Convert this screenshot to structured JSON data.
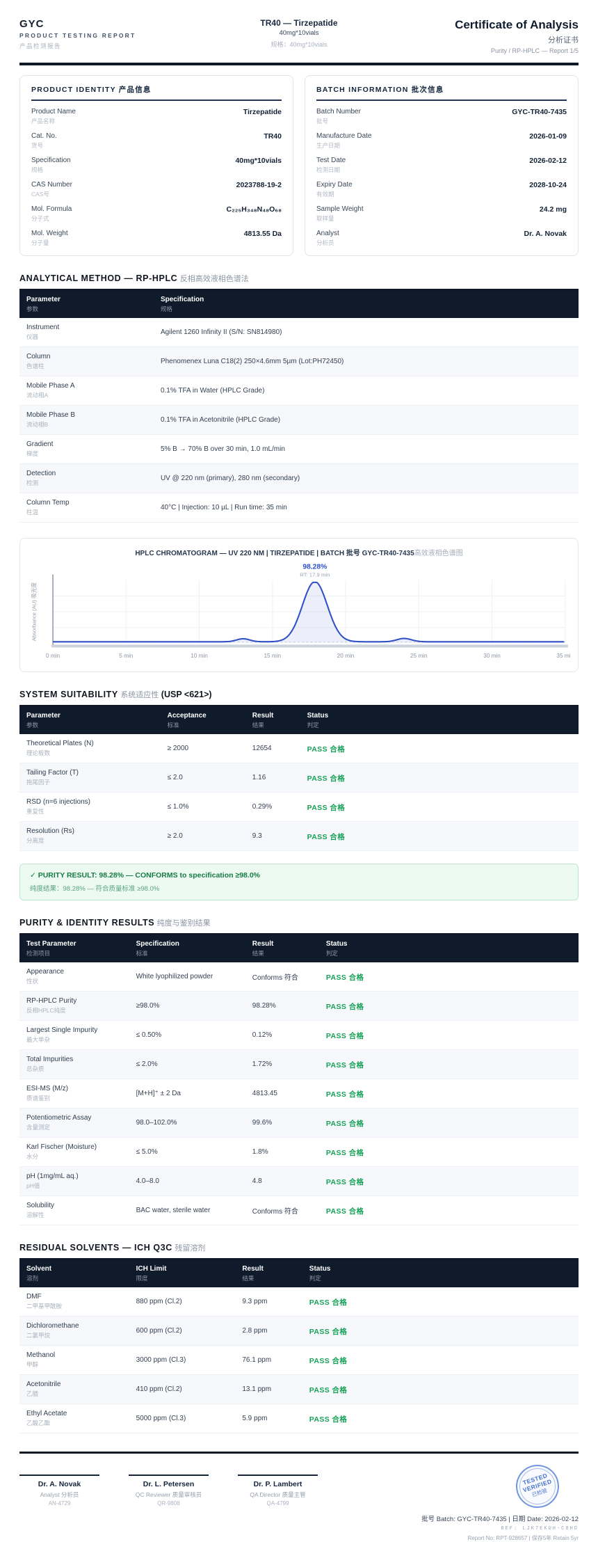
{
  "header": {
    "brand": "GYC",
    "brand_sub": "PRODUCT TESTING REPORT",
    "brand_zh": "产品检测报告",
    "product_title": "TR40 — Tirzepatide",
    "product_sub": "40mg*10vials",
    "product_spec_zh": "规格：40mg*10vials",
    "doc_title": "Certificate of Analysis",
    "doc_title_zh": "分析证书",
    "doc_sub": "Purity / RP-HPLC — Report 1/5"
  },
  "product_identity": {
    "title": "PRODUCT IDENTITY 产品信息",
    "rows": [
      {
        "label_en": "Product Name",
        "label_zh": "产品名称",
        "value": "Tirzepatide"
      },
      {
        "label_en": "Cat. No.",
        "label_zh": "货号",
        "value": "TR40"
      },
      {
        "label_en": "Specification",
        "label_zh": "规格",
        "value": "40mg*10vials"
      },
      {
        "label_en": "CAS Number",
        "label_zh": "CAS号",
        "value": "2023788-19-2"
      },
      {
        "label_en": "Mol. Formula",
        "label_zh": "分子式",
        "value": "C₂₂₅H₃₄₈N₄₈O₆₈"
      },
      {
        "label_en": "Mol. Weight",
        "label_zh": "分子量",
        "value": "4813.55 Da"
      }
    ]
  },
  "batch_information": {
    "title": "BATCH INFORMATION 批次信息",
    "rows": [
      {
        "label_en": "Batch Number",
        "label_zh": "批号",
        "value": "GYC-TR40-7435"
      },
      {
        "label_en": "Manufacture Date",
        "label_zh": "生产日期",
        "value": "2026-01-09"
      },
      {
        "label_en": "Test Date",
        "label_zh": "检测日期",
        "value": "2026-02-12"
      },
      {
        "label_en": "Expiry Date",
        "label_zh": "有效期",
        "value": "2028-10-24"
      },
      {
        "label_en": "Sample Weight",
        "label_zh": "取样量",
        "value": "24.2 mg"
      },
      {
        "label_en": "Analyst",
        "label_zh": "分析员",
        "value": "Dr. A. Novak"
      }
    ]
  },
  "method": {
    "heading_en": "ANALYTICAL METHOD — RP-HPLC",
    "heading_zh": "反相高效液相色谱法",
    "col1_en": "Parameter",
    "col1_zh": "参数",
    "col2_en": "Specification",
    "col2_zh": "规格",
    "rows": [
      {
        "param_en": "Instrument",
        "param_zh": "仪器",
        "spec": "Agilent 1260 Infinity II (S/N: SN814980)"
      },
      {
        "param_en": "Column",
        "param_zh": "色谱柱",
        "spec": "Phenomenex Luna C18(2) 250×4.6mm 5µm (Lot:PH72450)"
      },
      {
        "param_en": "Mobile Phase A",
        "param_zh": "流动相A",
        "spec": "0.1% TFA in Water (HPLC Grade)"
      },
      {
        "param_en": "Mobile Phase B",
        "param_zh": "流动相B",
        "spec": "0.1% TFA in Acetonitrile (HPLC Grade)"
      },
      {
        "param_en": "Gradient",
        "param_zh": "梯度",
        "spec": "5% B → 70% B over 30 min, 1.0 mL/min"
      },
      {
        "param_en": "Detection",
        "param_zh": "检测",
        "spec": "UV @ 220 nm (primary), 280 nm (secondary)"
      },
      {
        "param_en": "Column Temp",
        "param_zh": "柱温",
        "spec": "40°C | Injection: 10 µL | Run time: 35 min"
      }
    ]
  },
  "chart_data": {
    "type": "line",
    "title": "HPLC CHROMATOGRAM — UV 220 NM | TIRZEPATIDE | BATCH 批号 GYC-TR40-7435",
    "title_zh_suffix": "高效液相色谱图",
    "ylabel": "Absorbance (AU) 吸光度",
    "xlabel": "",
    "x_range_min": [
      0,
      35
    ],
    "x_ticks": [
      "0 min",
      "5 min",
      "10 min",
      "15 min",
      "20 min",
      "25 min",
      "30 min",
      "35 min"
    ],
    "x_tick_values": [
      0,
      5,
      10,
      15,
      20,
      25,
      30,
      35
    ],
    "grid": true,
    "main_peak": {
      "rt_min": 17.9,
      "rel_height": 1.0,
      "sigma_min": 0.85,
      "label": "98.28%",
      "rt_label": "RT: 17.9 min"
    },
    "minor_peaks": [
      {
        "rt_min": 13.0,
        "rel_height": 0.05,
        "sigma_min": 0.45
      },
      {
        "rt_min": 24.0,
        "rel_height": 0.055,
        "sigma_min": 0.5
      }
    ],
    "baseline_rel": 0.012,
    "line_color": "#3050c8",
    "fill_color": "#3050c8",
    "fill_opacity": 0.09,
    "annotation_color": "#2b50d0",
    "grid_color": "#eef1f6",
    "axis_color": "#8e99a8"
  },
  "suitability": {
    "heading_en": "SYSTEM SUITABILITY",
    "heading_zh": "系统适应性",
    "heading_sfx": "(USP <621>)",
    "cols": {
      "c1_en": "Parameter",
      "c1_zh": "参数",
      "c2_en": "Acceptance",
      "c2_zh": "标准",
      "c3_en": "Result",
      "c3_zh": "结果",
      "c4_en": "Status",
      "c4_zh": "判定"
    },
    "rows": [
      {
        "param_en": "Theoretical Plates (N)",
        "param_zh": "理论板数",
        "acceptance": "≥ 2000",
        "result": "12654",
        "status": "PASS 合格"
      },
      {
        "param_en": "Tailing Factor (T)",
        "param_zh": "拖尾因子",
        "acceptance": "≤ 2.0",
        "result": "1.16",
        "status": "PASS 合格"
      },
      {
        "param_en": "RSD (n=6 injections)",
        "param_zh": "重复性",
        "acceptance": "≤ 1.0%",
        "result": "0.29%",
        "status": "PASS 合格"
      },
      {
        "param_en": "Resolution (Rs)",
        "param_zh": "分离度",
        "acceptance": "≥ 2.0",
        "result": "9.3",
        "status": "PASS 合格"
      }
    ]
  },
  "purity_banner": {
    "line1": "✓ PURITY RESULT: 98.28% — CONFORMS to specification ≥98.0%",
    "line2": "纯度结果：98.28% — 符合质量标准 ≥98.0%"
  },
  "purity_results": {
    "heading_en": "PURITY & IDENTITY RESULTS",
    "heading_zh": "纯度与鉴别结果",
    "cols": {
      "c1_en": "Test Parameter",
      "c1_zh": "检测项目",
      "c2_en": "Specification",
      "c2_zh": "标准",
      "c3_en": "Result",
      "c3_zh": "结果",
      "c4_en": "Status",
      "c4_zh": "判定"
    },
    "rows": [
      {
        "param_en": "Appearance",
        "param_zh": "性状",
        "spec": "White lyophilized powder",
        "result": "Conforms 符合",
        "status": "PASS 合格"
      },
      {
        "param_en": "RP-HPLC Purity",
        "param_zh": "反相HPLC纯度",
        "spec": "≥98.0%",
        "result": "98.28%",
        "status": "PASS 合格"
      },
      {
        "param_en": "Largest Single Impurity",
        "param_zh": "最大单杂",
        "spec": "≤ 0.50%",
        "result": "0.12%",
        "status": "PASS 合格"
      },
      {
        "param_en": "Total Impurities",
        "param_zh": "总杂质",
        "spec": "≤ 2.0%",
        "result": "1.72%",
        "status": "PASS 合格"
      },
      {
        "param_en": "ESI-MS (M/z)",
        "param_zh": "质谱鉴别",
        "spec": "[M+H]⁺ ± 2 Da",
        "result": "4813.45",
        "status": "PASS 合格"
      },
      {
        "param_en": "Potentiometric Assay",
        "param_zh": "含量测定",
        "spec": "98.0–102.0%",
        "result": "99.6%",
        "status": "PASS 合格"
      },
      {
        "param_en": "Karl Fischer (Moisture)",
        "param_zh": "水分",
        "spec": "≤ 5.0%",
        "result": "1.8%",
        "status": "PASS 合格"
      },
      {
        "param_en": "pH (1mg/mL aq.)",
        "param_zh": "pH值",
        "spec": "4.0–8.0",
        "result": "4.8",
        "status": "PASS 合格"
      },
      {
        "param_en": "Solubility",
        "param_zh": "溶解性",
        "spec": "BAC water, sterile water",
        "result": "Conforms 符合",
        "status": "PASS 合格"
      }
    ]
  },
  "residual_solvents": {
    "heading_en": "RESIDUAL SOLVENTS — ICH Q3C",
    "heading_zh": "残留溶剂",
    "cols": {
      "c1_en": "Solvent",
      "c1_zh": "溶剂",
      "c2_en": "ICH Limit",
      "c2_zh": "限度",
      "c3_en": "Result",
      "c3_zh": "结果",
      "c4_en": "Status",
      "c4_zh": "判定"
    },
    "rows": [
      {
        "param_en": "DMF",
        "param_zh": "二甲基甲酰胺",
        "limit": "880 ppm (Cl.2)",
        "result": "9.3 ppm",
        "status": "PASS 合格"
      },
      {
        "param_en": "Dichloromethane",
        "param_zh": "二氯甲烷",
        "limit": "600 ppm (Cl.2)",
        "result": "2.8 ppm",
        "status": "PASS 合格"
      },
      {
        "param_en": "Methanol",
        "param_zh": "甲醇",
        "limit": "3000 ppm (Cl.3)",
        "result": "76.1 ppm",
        "status": "PASS 合格"
      },
      {
        "param_en": "Acetonitrile",
        "param_zh": "乙腈",
        "limit": "410 ppm (Cl.2)",
        "result": "13.1 ppm",
        "status": "PASS 合格"
      },
      {
        "param_en": "Ethyl Acetate",
        "param_zh": "乙酸乙酯",
        "limit": "5000 ppm (Cl.3)",
        "result": "5.9 ppm",
        "status": "PASS 合格"
      }
    ]
  },
  "footer": {
    "signatures": [
      {
        "name": "Dr. A. Novak",
        "role": "Analyst 分析员",
        "id": "AN-4729"
      },
      {
        "name": "Dr. L. Petersen",
        "role": "QC Reviewer 质量审核员",
        "id": "QR-9808"
      },
      {
        "name": "Dr. P. Lambert",
        "role": "QA Director 质量主管",
        "id": "QA-4799"
      }
    ],
    "stamp": {
      "line1": "TESTED",
      "line2": "VERIFIED",
      "line3": "已检验"
    },
    "meta1": "批号 Batch: GYC-TR40-7435 | 日期 Date: 2026-02-12",
    "meta2": "REF: LJK7EKUH-C8HD",
    "meta3": "Report No: RPT-928657 | 保存5年 Retain 5yr"
  }
}
